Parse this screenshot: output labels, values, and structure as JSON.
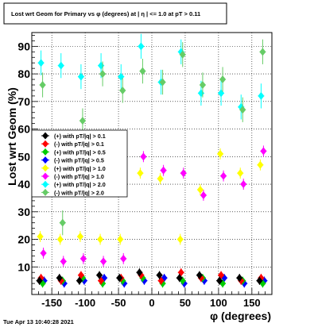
{
  "title": "Lost wrt Geom for Primary vs φ (degrees) at | η | <= 1.0 at pT > 0.11",
  "footer": "Tue Apr 13 10:40:28 2021",
  "chart_data": {
    "type": "scatter",
    "title": "Lost wrt Geom for Primary vs φ (degrees) at | η | <= 1.0 at pT > 0.11",
    "xlabel": "φ (degrees)",
    "ylabel": "Lost wrt Geom (%)",
    "xlim": [
      -180,
      180
    ],
    "ylim": [
      0,
      95
    ],
    "x_ticks": [
      -150,
      -100,
      -50,
      0,
      50,
      100,
      150
    ],
    "y_ticks": [
      10,
      20,
      30,
      40,
      50,
      60,
      70,
      80,
      90
    ],
    "grid": true,
    "legend_position": "left",
    "series": [
      {
        "name": "(+) with pT/|q| > 0.1",
        "color": "#000000",
        "x": [
          -165,
          -135,
          -105,
          -75,
          -45,
          -15,
          15,
          45,
          75,
          105,
          135,
          165
        ],
        "y": [
          5,
          6,
          5,
          7,
          6,
          8,
          7,
          6,
          7,
          5,
          6,
          5
        ]
      },
      {
        "name": "(-) with pT/|q| > 0.1",
        "color": "#ff0000",
        "x": [
          -165,
          -135,
          -105,
          -75,
          -45,
          -15,
          15,
          45,
          75,
          105,
          135,
          165
        ],
        "y": [
          6,
          5,
          7,
          5,
          6,
          7,
          5,
          8,
          6,
          7,
          5,
          6
        ]
      },
      {
        "name": "(+) with pT/|q| > 0.5",
        "color": "#00cc00",
        "x": [
          -165,
          -135,
          -105,
          -75,
          -45,
          -15,
          15,
          45,
          75,
          105,
          135,
          165
        ],
        "y": [
          4,
          5,
          6,
          4,
          5,
          6,
          4,
          5,
          6,
          4,
          5,
          4
        ]
      },
      {
        "name": "(-) with pT/|q| > 0.5",
        "color": "#0000ff",
        "x": [
          -165,
          -135,
          -105,
          -75,
          -45,
          -15,
          15,
          45,
          75,
          105,
          135,
          165
        ],
        "y": [
          5,
          4,
          5,
          6,
          4,
          5,
          6,
          4,
          5,
          6,
          4,
          5
        ]
      },
      {
        "name": "(+) with pT/|q| > 1.0",
        "color": "#ffff00",
        "x": [
          -165,
          -135,
          -105,
          -75,
          -45,
          -15,
          15,
          45,
          75,
          105,
          135,
          165
        ],
        "y": [
          21,
          20,
          21,
          20,
          20,
          44,
          42,
          20,
          38,
          51,
          44,
          47
        ]
      },
      {
        "name": "(-) with pT/|q| > 1.0",
        "color": "#ff00ff",
        "x": [
          -165,
          -135,
          -105,
          -75,
          -45,
          -15,
          15,
          45,
          75,
          105,
          135,
          165
        ],
        "y": [
          15,
          12,
          13,
          12,
          13,
          50,
          45,
          44,
          36,
          43,
          40,
          52
        ]
      },
      {
        "name": "(+) with pT/|q| > 2.0",
        "color": "#00ffff",
        "x": [
          -165,
          -135,
          -105,
          -75,
          -45,
          -15,
          15,
          45,
          75,
          105,
          135,
          165
        ],
        "y": [
          84,
          83,
          79,
          83,
          79,
          90,
          77,
          88,
          73,
          73,
          68,
          72
        ]
      },
      {
        "name": "(-) with pT/|q| > 2.0",
        "color": "#66cc66",
        "x": [
          -165,
          -135,
          -105,
          -75,
          -45,
          -15,
          15,
          45,
          75,
          105,
          135,
          165
        ],
        "y": [
          76,
          26,
          63,
          80,
          74,
          81,
          77,
          87,
          76,
          78,
          67,
          88
        ]
      }
    ]
  }
}
